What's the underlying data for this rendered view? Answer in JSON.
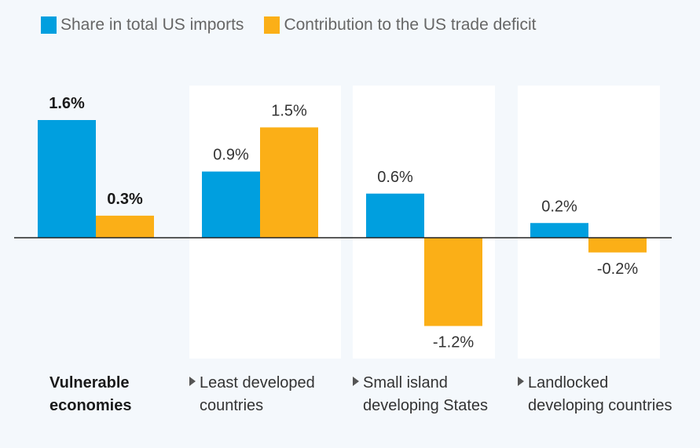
{
  "colors": {
    "share": "#009fdf",
    "contribution": "#fbaf17",
    "panel": "#ffffff",
    "axis": "#222222"
  },
  "legend": {
    "share": "Share in total US imports",
    "contribution": "Contribution to the US trade deficit"
  },
  "chart_data": {
    "type": "bar",
    "title": "",
    "xlabel": "",
    "ylabel": "",
    "categories": [
      "Vulnerable economies",
      "Least developed countries",
      "Small island developing States",
      "Landlocked developing countries"
    ],
    "series": [
      {
        "name": "Share in total US imports",
        "values": [
          1.6,
          0.9,
          0.6,
          0.2
        ],
        "labels": [
          "1.6%",
          "0.9%",
          "0.6%",
          "0.2%"
        ]
      },
      {
        "name": "Contribution to the US trade deficit",
        "values": [
          0.3,
          1.5,
          -1.2,
          -0.2
        ],
        "labels": [
          "0.3%",
          "1.5%",
          "-1.2%",
          "-0.2%"
        ]
      }
    ],
    "ylim": [
      -1.5,
      1.8
    ],
    "grid": false,
    "legend": "top-left"
  },
  "category_labels": [
    {
      "line1": "Vulnerable",
      "line2": "economies"
    },
    {
      "line1": "Least developed",
      "line2": "countries"
    },
    {
      "line1": "Small island",
      "line2": "developing States"
    },
    {
      "line1": "Landlocked",
      "line2": "developing countries"
    }
  ]
}
